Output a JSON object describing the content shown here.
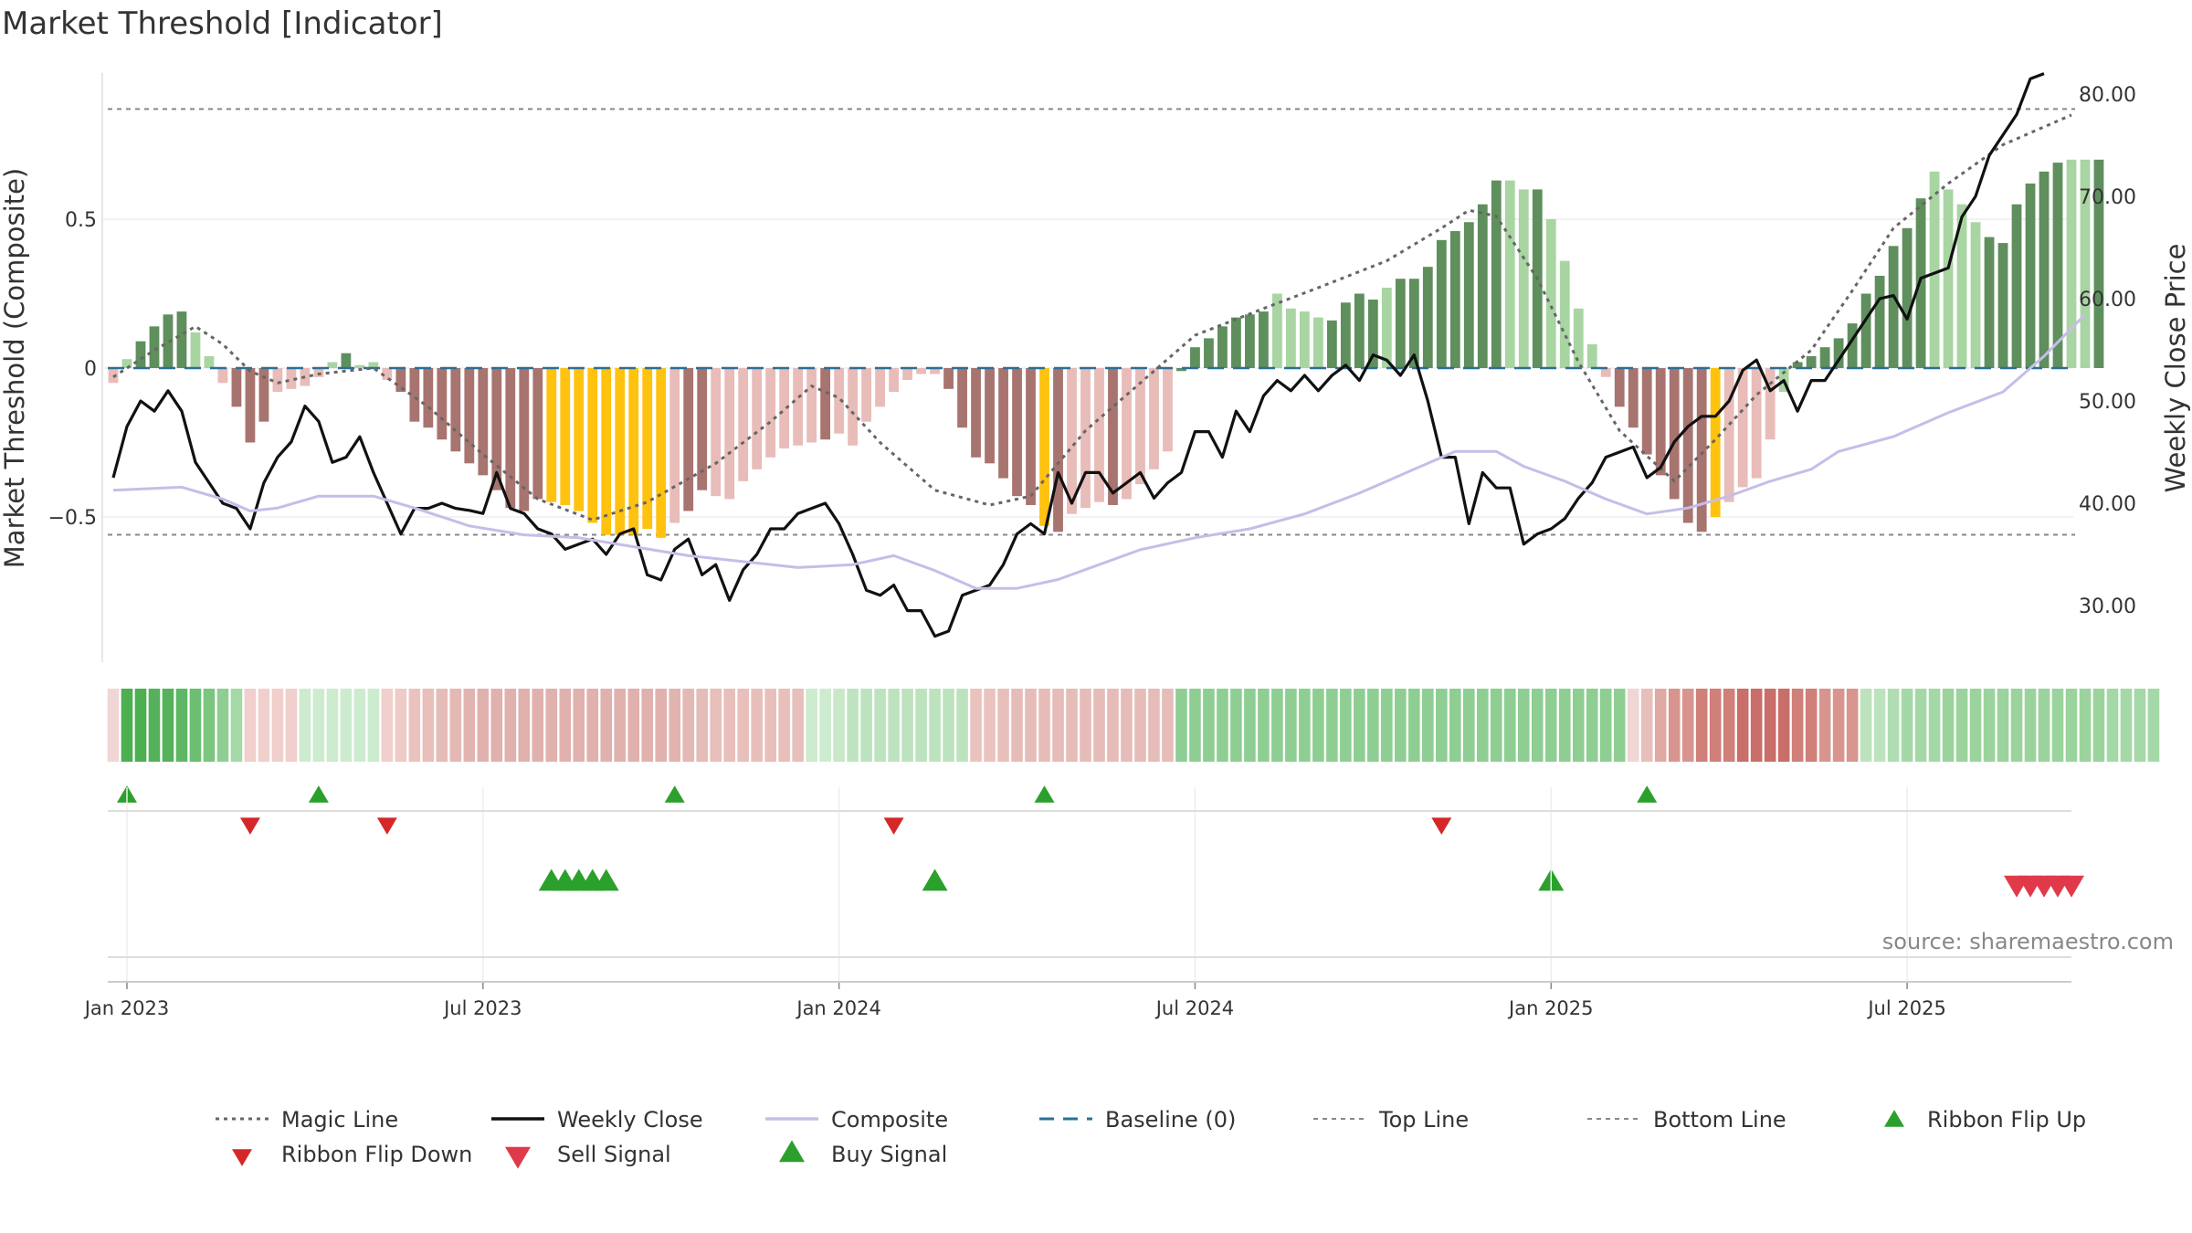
{
  "title": "Market Threshold [Indicator]",
  "source": "source: sharemaestro.com",
  "colors": {
    "strong_up": "#5e8f5d",
    "weak_up": "#a8d5a2",
    "strong_down": "#a87470",
    "weak_down": "#e8bcb8",
    "extreme": "#ffc20e",
    "close_line": "#111111",
    "composite_line": "#c6bde8",
    "magic_line": "#666666",
    "baseline": "#2a6f97",
    "ref_line": "#888888",
    "buy": "#2ca02c",
    "ribbon_down": "#d62728",
    "sell": "#e03a4a"
  },
  "chart_data": {
    "type": "bar",
    "title": "Market Threshold [Indicator]",
    "ylabel": "Market Threshold (Composite)",
    "y2label": "Weekly Close Price",
    "ylim": [
      -1.0,
      1.02
    ],
    "y2lim": [
      26.0,
      83.0
    ],
    "yticks": [
      {
        "value": 0.5,
        "label": "0.5"
      },
      {
        "value": 0.0,
        "label": "0"
      },
      {
        "value": -0.5,
        "label": "−0.5"
      }
    ],
    "y2ticks": [
      {
        "value": 80,
        "label": "80.00"
      },
      {
        "value": 70,
        "label": "70.00"
      },
      {
        "value": 60,
        "label": "60.00"
      },
      {
        "value": 50,
        "label": "50.00"
      },
      {
        "value": 40,
        "label": "40.00"
      },
      {
        "value": 30,
        "label": "30.00"
      }
    ],
    "xticks": [
      {
        "week": 1,
        "label": "Jan 2023"
      },
      {
        "week": 27,
        "label": "Jul 2023"
      },
      {
        "week": 53,
        "label": "Jan 2024"
      },
      {
        "week": 79,
        "label": "Jul 2024"
      },
      {
        "week": 105,
        "label": "Jan 2025"
      },
      {
        "week": 131,
        "label": "Jul 2025"
      }
    ],
    "top_line": 0.87,
    "bottom_line": -0.56,
    "baseline": 0,
    "weeks": 144,
    "composite_bars": [
      -0.05,
      0.03,
      0.09,
      0.14,
      0.18,
      0.19,
      0.12,
      0.04,
      -0.05,
      -0.13,
      -0.25,
      -0.18,
      -0.08,
      -0.07,
      -0.06,
      -0.03,
      0.02,
      0.05,
      0.01,
      0.02,
      -0.04,
      -0.08,
      -0.18,
      -0.2,
      -0.24,
      -0.28,
      -0.32,
      -0.36,
      -0.41,
      -0.47,
      -0.48,
      -0.44,
      -0.45,
      -0.46,
      -0.48,
      -0.52,
      -0.56,
      -0.56,
      -0.56,
      -0.54,
      -0.57,
      -0.52,
      -0.48,
      -0.41,
      -0.43,
      -0.44,
      -0.38,
      -0.34,
      -0.3,
      -0.27,
      -0.26,
      -0.25,
      -0.24,
      -0.22,
      -0.26,
      -0.18,
      -0.13,
      -0.08,
      -0.04,
      -0.02,
      -0.02,
      -0.07,
      -0.2,
      -0.3,
      -0.32,
      -0.37,
      -0.43,
      -0.46,
      -0.53,
      -0.55,
      -0.49,
      -0.47,
      -0.45,
      -0.46,
      -0.44,
      -0.39,
      -0.34,
      -0.28,
      -0.01,
      0.07,
      0.1,
      0.14,
      0.17,
      0.18,
      0.19,
      0.25,
      0.2,
      0.19,
      0.17,
      0.16,
      0.22,
      0.25,
      0.23,
      0.27,
      0.3,
      0.3,
      0.34,
      0.43,
      0.46,
      0.49,
      0.55,
      0.63,
      0.63,
      0.6,
      0.6,
      0.5,
      0.36,
      0.2,
      0.08,
      -0.03,
      -0.13,
      -0.2,
      -0.29,
      -0.36,
      -0.44,
      -0.52,
      -0.55,
      -0.5,
      -0.45,
      -0.4,
      -0.37,
      -0.24,
      -0.08,
      0.02,
      0.04,
      0.07,
      0.1,
      0.15,
      0.25,
      0.31,
      0.41,
      0.47,
      0.57,
      0.66,
      0.6,
      0.55,
      0.49,
      0.44,
      0.42,
      0.55,
      0.62,
      0.66,
      0.69,
      0.7,
      0.7,
      0.7
    ],
    "bar_colors": [
      "weak_down",
      "weak_up",
      "strong_up",
      "strong_up",
      "strong_up",
      "strong_up",
      "weak_up",
      "weak_up",
      "weak_down",
      "strong_down",
      "strong_down",
      "strong_down",
      "weak_down",
      "weak_down",
      "weak_down",
      "weak_down",
      "weak_up",
      "strong_up",
      "weak_up",
      "weak_up",
      "weak_down",
      "strong_down",
      "strong_down",
      "strong_down",
      "strong_down",
      "strong_down",
      "strong_down",
      "strong_down",
      "strong_down",
      "strong_down",
      "strong_down",
      "strong_down",
      "extreme",
      "extreme",
      "extreme",
      "extreme",
      "extreme",
      "extreme",
      "extreme",
      "extreme",
      "extreme",
      "weak_down",
      "strong_down",
      "strong_down",
      "weak_down",
      "weak_down",
      "weak_down",
      "weak_down",
      "weak_down",
      "weak_down",
      "weak_down",
      "weak_down",
      "strong_down",
      "weak_down",
      "weak_down",
      "weak_down",
      "weak_down",
      "weak_down",
      "weak_down",
      "weak_down",
      "weak_down",
      "strong_down",
      "strong_down",
      "strong_down",
      "strong_down",
      "strong_down",
      "strong_down",
      "strong_down",
      "extreme",
      "strong_down",
      "weak_down",
      "weak_down",
      "weak_down",
      "strong_down",
      "weak_down",
      "weak_down",
      "weak_down",
      "weak_down",
      "strong_up",
      "strong_up",
      "strong_up",
      "strong_up",
      "strong_up",
      "strong_up",
      "strong_up",
      "weak_up",
      "weak_up",
      "weak_up",
      "weak_up",
      "strong_up",
      "strong_up",
      "strong_up",
      "strong_up",
      "weak_up",
      "strong_up",
      "strong_up",
      "strong_up",
      "strong_up",
      "strong_up",
      "strong_up",
      "strong_up",
      "strong_up",
      "weak_up",
      "weak_up",
      "strong_up",
      "weak_up",
      "weak_up",
      "weak_up",
      "weak_up",
      "weak_down",
      "strong_down",
      "strong_down",
      "strong_down",
      "strong_down",
      "strong_down",
      "strong_down",
      "strong_down",
      "extreme",
      "weak_down",
      "weak_down",
      "weak_down",
      "weak_down",
      "weak_up",
      "strong_up",
      "strong_up",
      "strong_up",
      "strong_up",
      "strong_up",
      "strong_up",
      "strong_up",
      "strong_up",
      "strong_up",
      "strong_up",
      "weak_up",
      "weak_up",
      "weak_up",
      "weak_up",
      "strong_up",
      "strong_up",
      "strong_up",
      "strong_up",
      "strong_up",
      "strong_up",
      "weak_up",
      "weak_up",
      "strong_up"
    ],
    "series": [
      {
        "name": "Magic Line",
        "axis": "left",
        "points": [
          [
            0,
            -0.03
          ],
          [
            3,
            0.06
          ],
          [
            6,
            0.14
          ],
          [
            8,
            0.08
          ],
          [
            10,
            -0.01
          ],
          [
            12,
            -0.05
          ],
          [
            15,
            -0.02
          ],
          [
            19,
            0.0
          ],
          [
            23,
            -0.13
          ],
          [
            27,
            -0.29
          ],
          [
            31,
            -0.44
          ],
          [
            35,
            -0.51
          ],
          [
            39,
            -0.45
          ],
          [
            44,
            -0.32
          ],
          [
            48,
            -0.18
          ],
          [
            51,
            -0.06
          ],
          [
            53,
            -0.1
          ],
          [
            56,
            -0.25
          ],
          [
            60,
            -0.41
          ],
          [
            64,
            -0.46
          ],
          [
            67,
            -0.43
          ],
          [
            71,
            -0.21
          ],
          [
            75,
            -0.05
          ],
          [
            79,
            0.11
          ],
          [
            84,
            0.2
          ],
          [
            88,
            0.27
          ],
          [
            93,
            0.36
          ],
          [
            97,
            0.47
          ],
          [
            99,
            0.53
          ],
          [
            101,
            0.51
          ],
          [
            104,
            0.3
          ],
          [
            107,
            0.02
          ],
          [
            110,
            -0.21
          ],
          [
            114,
            -0.38
          ],
          [
            117,
            -0.24
          ],
          [
            120,
            -0.09
          ],
          [
            124,
            0.06
          ],
          [
            127,
            0.26
          ],
          [
            130,
            0.47
          ],
          [
            134,
            0.62
          ],
          [
            138,
            0.75
          ],
          [
            143,
            0.85
          ]
        ]
      },
      {
        "name": "Weekly Close",
        "axis": "right",
        "values": [
          42.5,
          47.5,
          50,
          49,
          51,
          49,
          44,
          42,
          40,
          39.5,
          37.5,
          42,
          44.5,
          46,
          49.5,
          48,
          44,
          44.5,
          46.5,
          43,
          40,
          37,
          39.5,
          39.5,
          40,
          39.5,
          39.3,
          39,
          43,
          39.5,
          39,
          37.5,
          37,
          35.5,
          36,
          36.5,
          35,
          37,
          37.5,
          33,
          32.5,
          35.5,
          36.5,
          33,
          34,
          30.5,
          33.5,
          35,
          37.5,
          37.5,
          39,
          39.5,
          40,
          38,
          35,
          31.5,
          31,
          32,
          29.5,
          29.5,
          27,
          27.5,
          31,
          31.5,
          32,
          34,
          37,
          38,
          37,
          43,
          40,
          43,
          43,
          41,
          42,
          43,
          40.5,
          42,
          43,
          47,
          47,
          44.5,
          49,
          47,
          50.5,
          52,
          51,
          52.5,
          51,
          52.5,
          53.5,
          52,
          54.5,
          54,
          52.5,
          54.5,
          50,
          44.5,
          44.5,
          38,
          43,
          41.5,
          41.5,
          36,
          37,
          37.5,
          38.5,
          40.5,
          42,
          44.5,
          45,
          45.5,
          42.5,
          43.5,
          46,
          47.5,
          48.5,
          48.5,
          50,
          53,
          54,
          51,
          52,
          49,
          52,
          52,
          54,
          56,
          58,
          60,
          60.3,
          58,
          62,
          62.5,
          63,
          68,
          70,
          74,
          76,
          78,
          81.5,
          82
        ]
      },
      {
        "name": "Composite",
        "axis": "left",
        "points": [
          [
            0,
            -0.41
          ],
          [
            5,
            -0.4
          ],
          [
            8,
            -0.44
          ],
          [
            10,
            -0.48
          ],
          [
            12,
            -0.47
          ],
          [
            15,
            -0.43
          ],
          [
            19,
            -0.43
          ],
          [
            22,
            -0.47
          ],
          [
            26,
            -0.53
          ],
          [
            30,
            -0.56
          ],
          [
            34,
            -0.57
          ],
          [
            38,
            -0.6
          ],
          [
            42,
            -0.63
          ],
          [
            46,
            -0.65
          ],
          [
            50,
            -0.67
          ],
          [
            54,
            -0.66
          ],
          [
            57,
            -0.63
          ],
          [
            60,
            -0.68
          ],
          [
            63,
            -0.74
          ],
          [
            66,
            -0.74
          ],
          [
            69,
            -0.71
          ],
          [
            72,
            -0.66
          ],
          [
            75,
            -0.61
          ],
          [
            79,
            -0.57
          ],
          [
            83,
            -0.54
          ],
          [
            87,
            -0.49
          ],
          [
            91,
            -0.42
          ],
          [
            95,
            -0.34
          ],
          [
            98,
            -0.28
          ],
          [
            101,
            -0.28
          ],
          [
            103,
            -0.33
          ],
          [
            106,
            -0.38
          ],
          [
            109,
            -0.44
          ],
          [
            112,
            -0.49
          ],
          [
            115,
            -0.47
          ],
          [
            118,
            -0.43
          ],
          [
            121,
            -0.38
          ],
          [
            124,
            -0.34
          ],
          [
            126,
            -0.28
          ],
          [
            130,
            -0.23
          ],
          [
            134,
            -0.15
          ],
          [
            138,
            -0.08
          ],
          [
            141,
            0.04
          ],
          [
            144,
            0.18
          ]
        ]
      }
    ],
    "ribbon": {
      "colors": [
        "#f0d6d4",
        "#4caf50",
        "#4caf50",
        "#55b15b",
        "#55b15b",
        "#5eb764",
        "#6cbe72",
        "#7bc57f",
        "#8fce92",
        "#a5d8a7",
        "#f0cfcc",
        "#f0cfcc",
        "#f0cfcc",
        "#f0cfcc",
        "#cdebce",
        "#cdebce",
        "#cdebce",
        "#cdebce",
        "#cdebce",
        "#cdebce",
        "#f0cfcc",
        "#eecbc7",
        "#eac3bf",
        "#e8bfbb",
        "#e6bcb8",
        "#e4b8b4",
        "#e2b4b0",
        "#e0b1ad",
        "#e0b1ad",
        "#e0b1ad",
        "#e0b1ad",
        "#e0b1ad",
        "#e0b1ad",
        "#e0b1ad",
        "#e0b1ad",
        "#e0b1ad",
        "#e0b1ad",
        "#e0b1ad",
        "#e0b1ad",
        "#e0b1ad",
        "#e0b1ad",
        "#e2b4b0",
        "#e4b8b4",
        "#e6bcb8",
        "#e8bfbb",
        "#e8bfbb",
        "#e8bfbb",
        "#e8bfbb",
        "#e8bfbb",
        "#e8bfbb",
        "#e8bfbb",
        "#cdebce",
        "#cdebce",
        "#c8e8c9",
        "#c0e4c1",
        "#bde3be",
        "#bde3be",
        "#bde3be",
        "#bde3be",
        "#bde3be",
        "#bde3be",
        "#bde3be",
        "#bde3be",
        "#eac3bf",
        "#eac3bf",
        "#e8bfbb",
        "#e6bcb8",
        "#e6bcb8",
        "#e6bcb8",
        "#e6bcb8",
        "#e6bcb8",
        "#e6bcb8",
        "#e6bcb8",
        "#e6bcb8",
        "#e6bcb8",
        "#e6bcb8",
        "#e6bcb8",
        "#e6bcb8",
        "#8fce92",
        "#8fce92",
        "#8fce92",
        "#8fce92",
        "#8fce92",
        "#8fce92",
        "#8fce92",
        "#8fce92",
        "#8fce92",
        "#8fce92",
        "#8fce92",
        "#8fce92",
        "#8fce92",
        "#8fce92",
        "#8fce92",
        "#8fce92",
        "#8fce92",
        "#8fce92",
        "#8fce92",
        "#8fce92",
        "#8fce92",
        "#8fce92",
        "#8fce92",
        "#8fce92",
        "#8fce92",
        "#8fce92",
        "#8fce92",
        "#8fce92",
        "#8fce92",
        "#8fce92",
        "#8fce92",
        "#8fce92",
        "#8fce92",
        "#f0d6d4",
        "#e8bfbb",
        "#e0a9a4",
        "#d8958f",
        "#d8958f",
        "#d07f79",
        "#d07f79",
        "#d07f79",
        "#c96e68",
        "#c96e68",
        "#c96e68",
        "#c96e68",
        "#d07f79",
        "#d07f79",
        "#d8958f",
        "#d8958f",
        "#d8958f",
        "#bde3be",
        "#bde3be",
        "#b0ddb2",
        "#a5d8a7",
        "#a5d8a7",
        "#a5d8a7",
        "#9bd39d",
        "#9bd39d",
        "#9bd39d",
        "#9bd39d",
        "#9bd39d",
        "#9bd39d",
        "#9bd39d",
        "#9bd39d",
        "#9bd39d",
        "#9bd39d",
        "#9bd39d",
        "#9bd39d",
        "#a5d8a7",
        "#a5d8a7",
        "#a5d8a7",
        "#a5d8a7"
      ]
    },
    "ribbon_flip_up": [
      1,
      15,
      41,
      68,
      112
    ],
    "ribbon_flip_down": [
      10,
      20,
      57,
      97
    ],
    "buy_signals": [
      32,
      33,
      34,
      35,
      36,
      60,
      105
    ],
    "sell_signals": [
      139,
      140,
      141,
      142,
      143
    ],
    "legend": [
      {
        "key": "magic",
        "label": "Magic Line"
      },
      {
        "key": "close",
        "label": "Weekly Close"
      },
      {
        "key": "composite",
        "label": "Composite"
      },
      {
        "key": "baseline",
        "label": "Baseline (0)"
      },
      {
        "key": "top",
        "label": "Top Line"
      },
      {
        "key": "bottom",
        "label": "Bottom Line"
      },
      {
        "key": "flipup",
        "label": "Ribbon Flip Up"
      },
      {
        "key": "flipdown",
        "label": "Ribbon Flip Down"
      },
      {
        "key": "sell",
        "label": "Sell Signal"
      },
      {
        "key": "buy",
        "label": "Buy Signal"
      }
    ]
  }
}
